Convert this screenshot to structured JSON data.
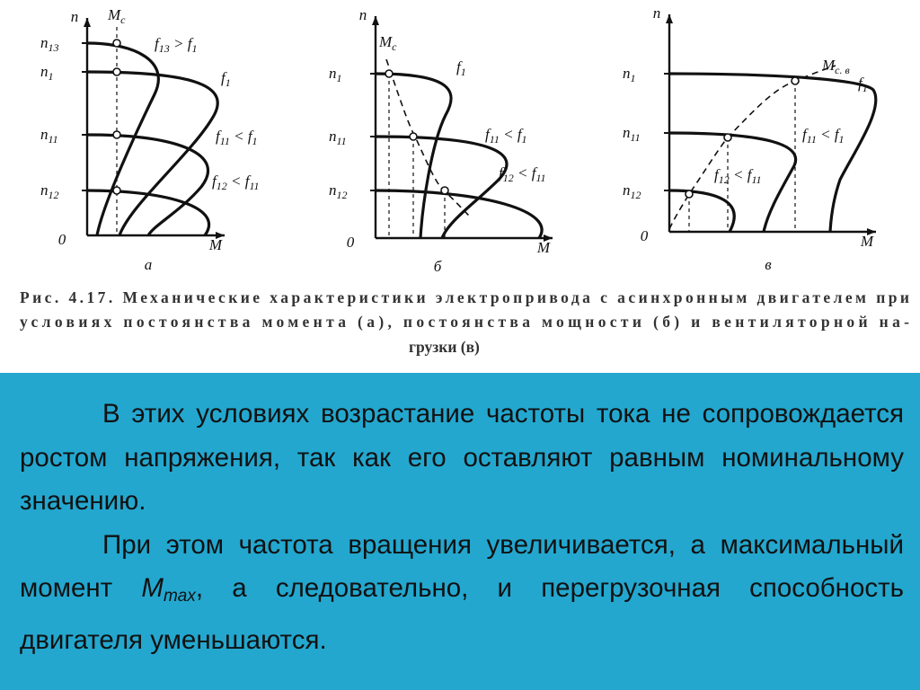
{
  "figure": {
    "panels": [
      {
        "label": "а",
        "y_axis": "n",
        "x_axis": "M",
        "origin": "0",
        "load": [
          "M",
          "с"
        ],
        "levels": [
          [
            "n",
            "13"
          ],
          [
            "n",
            "1"
          ],
          [
            "n",
            "11"
          ],
          [
            "n",
            "12"
          ]
        ],
        "curves": [
          [
            "f",
            "13",
            " > f",
            "1"
          ],
          [
            "f",
            "1"
          ],
          [
            "f",
            "11",
            " < f",
            "1"
          ],
          [
            "f",
            "12",
            " < f",
            "11"
          ]
        ]
      },
      {
        "label": "б",
        "y_axis": "n",
        "x_axis": "M",
        "origin": "0",
        "load": [
          "M",
          "с"
        ],
        "levels": [
          [
            "n",
            "1"
          ],
          [
            "n",
            "11"
          ],
          [
            "n",
            "12"
          ]
        ],
        "curves": [
          [
            "f",
            "1"
          ],
          [
            "f",
            "11",
            " < f",
            "1"
          ],
          [
            "f",
            "12",
            " < f",
            "11"
          ]
        ]
      },
      {
        "label": "в",
        "y_axis": "n",
        "x_axis": "M",
        "origin": "0",
        "load": [
          "M",
          "с. в"
        ],
        "levels": [
          [
            "n",
            "1"
          ],
          [
            "n",
            "11"
          ],
          [
            "n",
            "12"
          ]
        ],
        "curves": [
          [
            "f",
            "1"
          ],
          [
            "f",
            "11",
            " < f",
            "1"
          ],
          [
            "f",
            "12",
            " < f",
            "11"
          ]
        ]
      }
    ],
    "caption": [
      "Рис. 4.17. Механические характеристики электропривода с асинхронным двигателем при",
      "условиях постоянства момента (а), постоянства мощности (б) и вентиляторной на-",
      "грузки (в)"
    ]
  },
  "text": {
    "paragraph1": "В этих условиях возрастание частоты тока не сопровождается ростом напряжения, так как его оставляют равным номинальному значению.",
    "paragraph2": [
      "При этом частота вращения увеличивается, а максимальный момент ",
      "M",
      "max",
      ", а следовательно, и перегрузочная способность двигателя уменьшаются."
    ]
  }
}
